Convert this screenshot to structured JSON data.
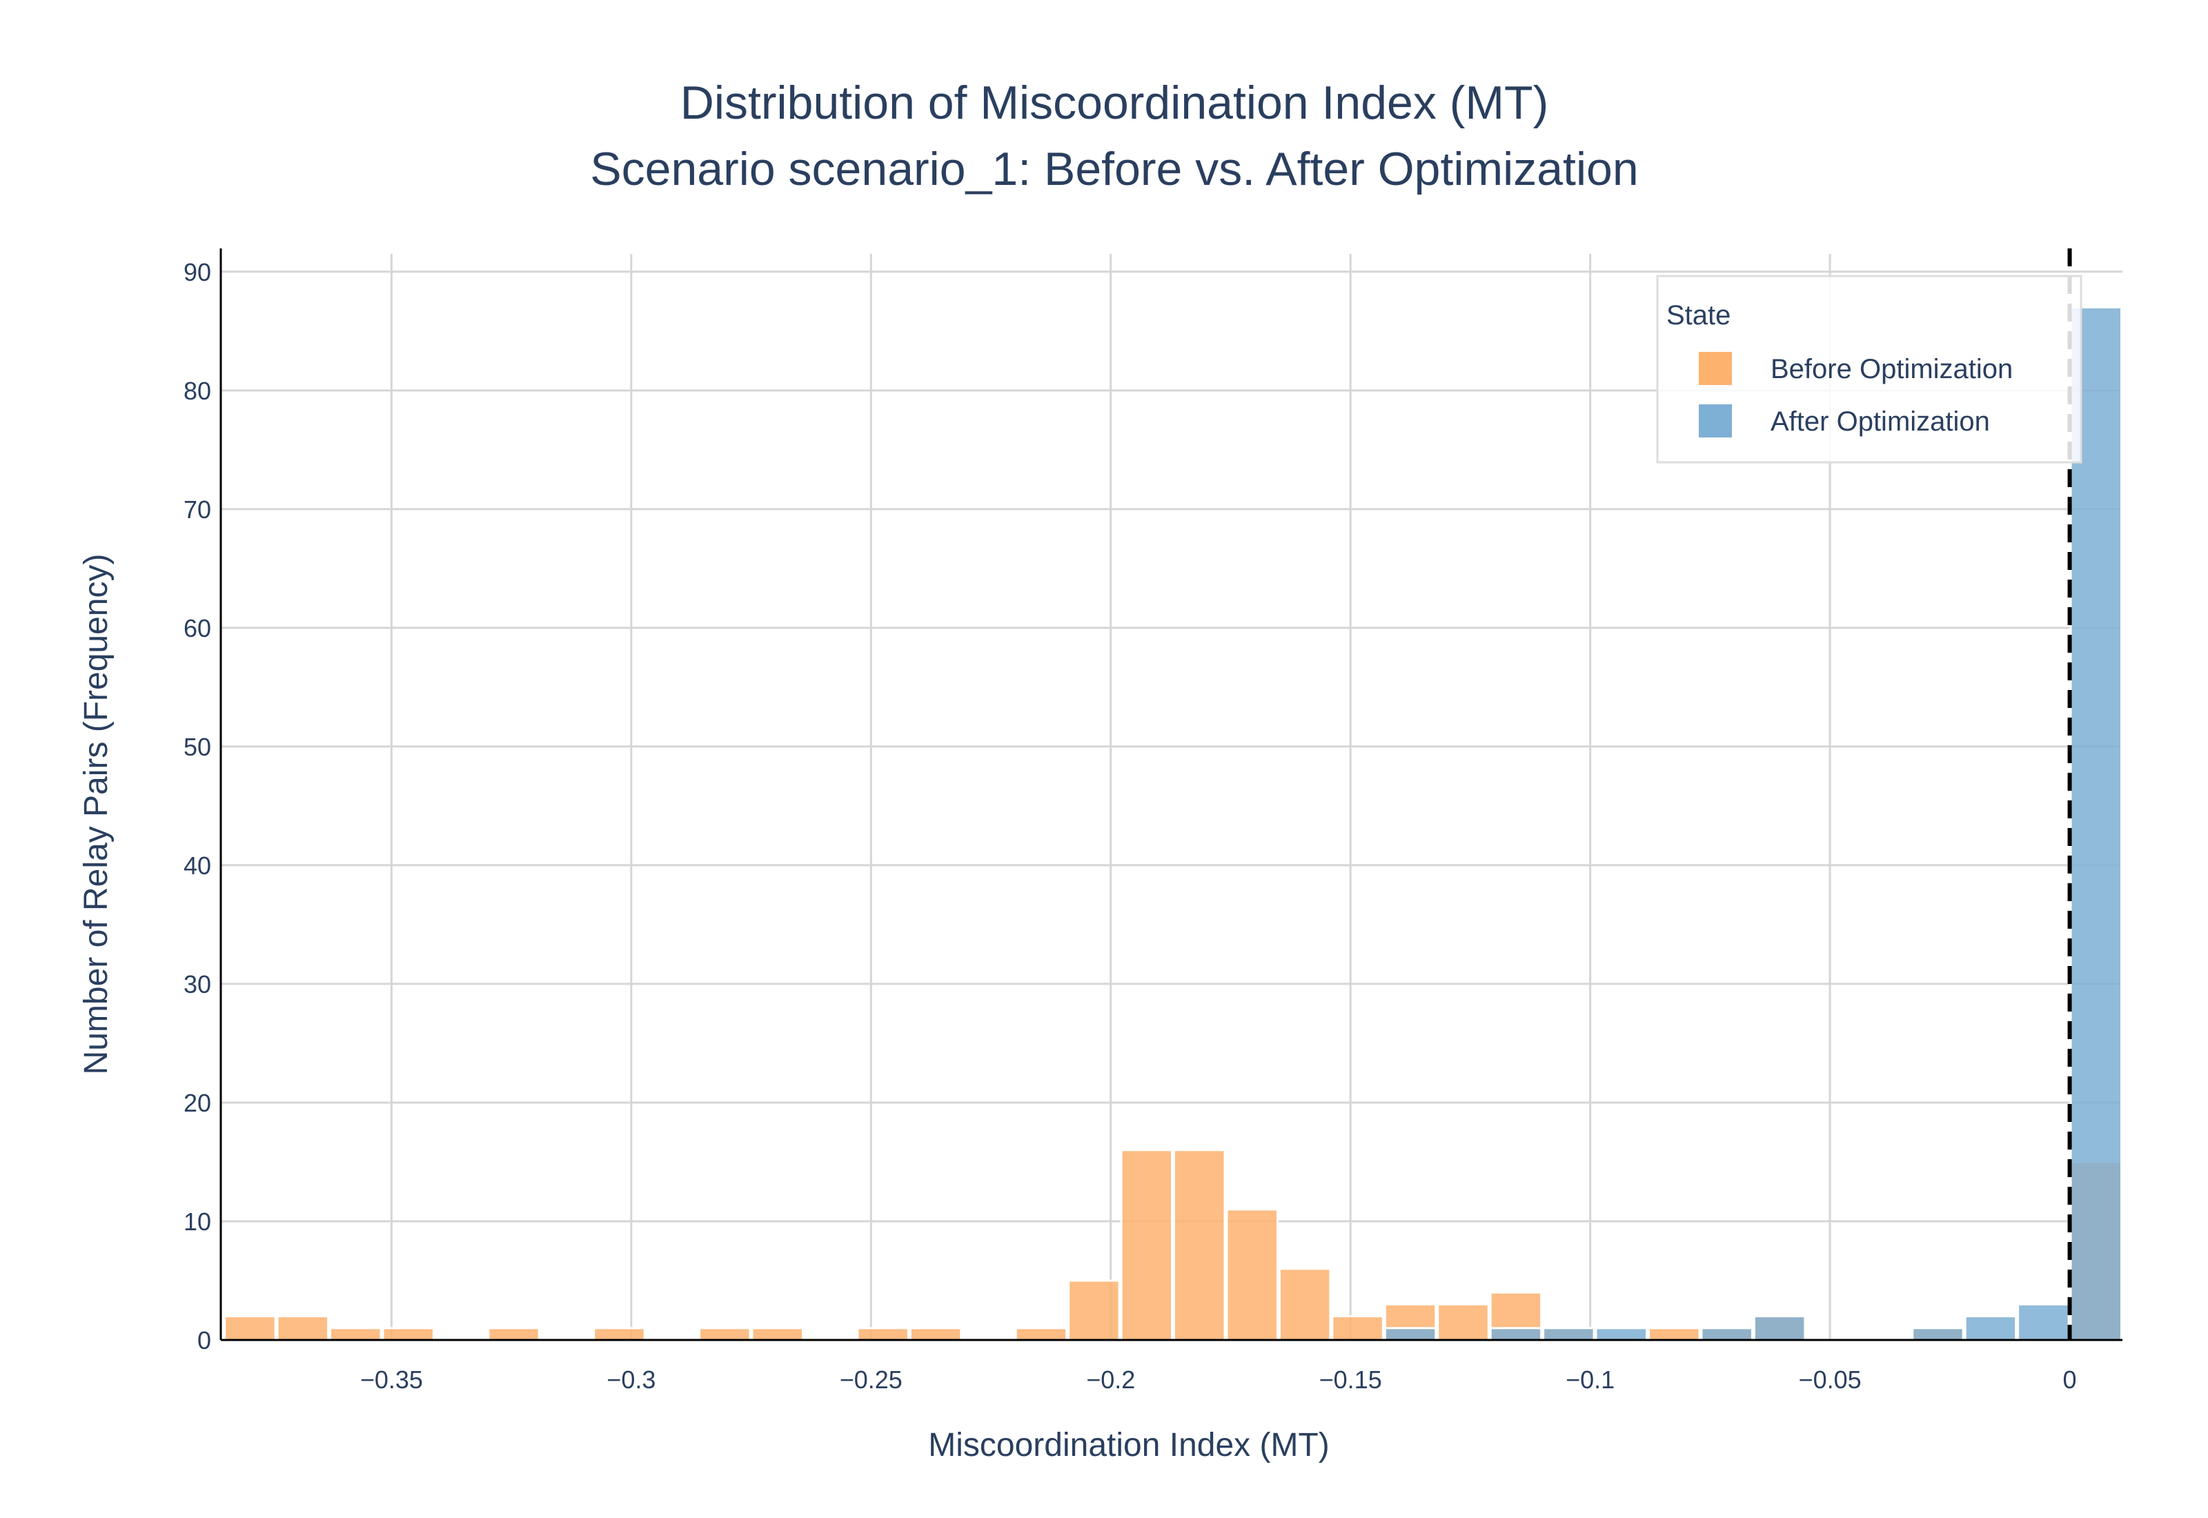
{
  "chart_data": {
    "type": "bar",
    "title": "Distribution of Miscoordination Index (MT)",
    "subtitle": "Scenario scenario_1: Before vs. After Optimization",
    "xlabel": "Miscoordination Index (MT)",
    "ylabel": "Number of Relay Pairs (Frequency)",
    "xlim": [
      -0.3856,
      0.011
    ],
    "ylim": [
      0,
      91.5
    ],
    "bin_width": 0.011,
    "x_ticks": [
      -0.35,
      -0.3,
      -0.25,
      -0.2,
      -0.15,
      -0.1,
      -0.05,
      0
    ],
    "x_tick_labels": [
      "−0.35",
      "−0.3",
      "−0.25",
      "−0.2",
      "−0.15",
      "−0.1",
      "−0.05",
      "0"
    ],
    "y_ticks": [
      0,
      10,
      20,
      30,
      40,
      50,
      60,
      70,
      80,
      90
    ],
    "y_tick_labels": [
      "0",
      "10",
      "20",
      "30",
      "40",
      "50",
      "60",
      "70",
      "80",
      "90"
    ],
    "reference_line": {
      "x": 0,
      "style": "dashed",
      "color": "#000000"
    },
    "grid": true,
    "legend": {
      "title": "State",
      "position": "top-right"
    },
    "series": [
      {
        "name": "Before Optimization",
        "color": "#fdb26e",
        "bins": [
          {
            "x0": -0.385,
            "count": 2
          },
          {
            "x0": -0.374,
            "count": 2
          },
          {
            "x0": -0.363,
            "count": 1
          },
          {
            "x0": -0.352,
            "count": 1
          },
          {
            "x0": -0.33,
            "count": 1
          },
          {
            "x0": -0.308,
            "count": 1
          },
          {
            "x0": -0.286,
            "count": 1
          },
          {
            "x0": -0.275,
            "count": 1
          },
          {
            "x0": -0.253,
            "count": 1
          },
          {
            "x0": -0.242,
            "count": 1
          },
          {
            "x0": -0.22,
            "count": 1
          },
          {
            "x0": -0.209,
            "count": 5
          },
          {
            "x0": -0.198,
            "count": 16
          },
          {
            "x0": -0.187,
            "count": 16
          },
          {
            "x0": -0.176,
            "count": 11
          },
          {
            "x0": -0.165,
            "count": 6
          },
          {
            "x0": -0.154,
            "count": 2
          },
          {
            "x0": -0.143,
            "count": 3
          },
          {
            "x0": -0.132,
            "count": 3
          },
          {
            "x0": -0.121,
            "count": 4
          },
          {
            "x0": -0.11,
            "count": 1
          },
          {
            "x0": -0.099,
            "count": 0
          },
          {
            "x0": -0.088,
            "count": 1
          },
          {
            "x0": -0.077,
            "count": 1
          },
          {
            "x0": -0.066,
            "count": 2
          },
          {
            "x0": -0.033,
            "count": 1
          },
          {
            "x0": 0.0,
            "count": 15
          }
        ]
      },
      {
        "name": "After Optimization",
        "color": "#7eafd4",
        "bins": [
          {
            "x0": -0.143,
            "count": 1
          },
          {
            "x0": -0.121,
            "count": 1
          },
          {
            "x0": -0.11,
            "count": 1
          },
          {
            "x0": -0.099,
            "count": 1
          },
          {
            "x0": -0.077,
            "count": 1
          },
          {
            "x0": -0.066,
            "count": 2
          },
          {
            "x0": -0.033,
            "count": 1
          },
          {
            "x0": -0.022,
            "count": 2
          },
          {
            "x0": -0.011,
            "count": 3
          },
          {
            "x0": 0.0,
            "count": 87
          }
        ]
      }
    ]
  }
}
